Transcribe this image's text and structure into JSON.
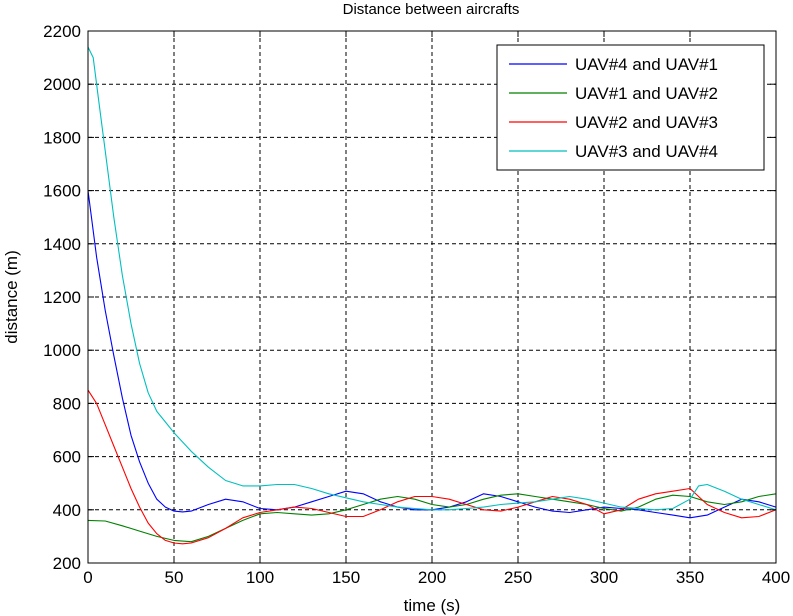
{
  "chart_data": {
    "type": "line",
    "title": "Distance between aircrafts",
    "xlabel": "time (s)",
    "ylabel": "distance (m)",
    "xlim": [
      0,
      400
    ],
    "ylim": [
      200,
      2200
    ],
    "xticks": [
      0,
      50,
      100,
      150,
      200,
      250,
      300,
      350,
      400
    ],
    "yticks": [
      200,
      400,
      600,
      800,
      1000,
      1200,
      1400,
      1600,
      1800,
      2000,
      2200
    ],
    "grid": true,
    "legend_position": "top-right",
    "series": [
      {
        "name": "UAV#4 and UAV#1",
        "color": "#0000ff",
        "x": [
          0,
          5,
          10,
          15,
          20,
          25,
          30,
          35,
          40,
          45,
          50,
          55,
          60,
          70,
          80,
          90,
          100,
          110,
          120,
          130,
          140,
          150,
          160,
          170,
          180,
          190,
          200,
          210,
          220,
          230,
          240,
          250,
          260,
          270,
          280,
          290,
          300,
          310,
          320,
          330,
          340,
          350,
          360,
          370,
          380,
          390,
          400
        ],
        "y": [
          1600,
          1350,
          1150,
          980,
          820,
          680,
          580,
          500,
          440,
          410,
          395,
          392,
          395,
          420,
          440,
          430,
          405,
          400,
          410,
          430,
          450,
          470,
          460,
          430,
          410,
          400,
          400,
          410,
          430,
          460,
          450,
          430,
          410,
          395,
          390,
          400,
          410,
          405,
          400,
          390,
          380,
          370,
          380,
          410,
          440,
          430,
          410
        ]
      },
      {
        "name": "UAV#1 and UAV#2",
        "color": "#008000",
        "x": [
          0,
          10,
          20,
          30,
          40,
          50,
          60,
          70,
          80,
          90,
          100,
          110,
          120,
          130,
          140,
          150,
          160,
          170,
          180,
          190,
          200,
          210,
          220,
          230,
          240,
          250,
          260,
          270,
          280,
          290,
          300,
          310,
          320,
          330,
          340,
          350,
          360,
          370,
          380,
          390,
          400
        ],
        "y": [
          360,
          358,
          340,
          320,
          300,
          285,
          280,
          300,
          330,
          360,
          385,
          390,
          385,
          380,
          385,
          400,
          420,
          440,
          450,
          440,
          420,
          410,
          420,
          440,
          455,
          460,
          450,
          440,
          430,
          420,
          405,
          395,
          410,
          440,
          455,
          450,
          430,
          420,
          430,
          450,
          460
        ]
      },
      {
        "name": "UAV#2 and UAV#3",
        "color": "#ff0000",
        "x": [
          0,
          5,
          10,
          15,
          20,
          25,
          30,
          35,
          40,
          45,
          50,
          55,
          60,
          70,
          80,
          90,
          100,
          110,
          120,
          130,
          140,
          150,
          160,
          170,
          180,
          190,
          200,
          210,
          220,
          230,
          240,
          250,
          260,
          270,
          280,
          290,
          300,
          310,
          320,
          330,
          340,
          350,
          360,
          370,
          380,
          390,
          400
        ],
        "y": [
          850,
          800,
          720,
          640,
          560,
          480,
          410,
          350,
          310,
          285,
          275,
          272,
          275,
          295,
          330,
          370,
          390,
          400,
          410,
          405,
          390,
          375,
          375,
          400,
          430,
          450,
          450,
          440,
          420,
          400,
          395,
          410,
          430,
          450,
          440,
          420,
          385,
          400,
          440,
          460,
          470,
          480,
          420,
          390,
          370,
          375,
          400
        ]
      },
      {
        "name": "UAV#3 and UAV#4",
        "color": "#00bfbf",
        "x": [
          0,
          3,
          6,
          10,
          15,
          20,
          25,
          30,
          35,
          40,
          45,
          50,
          60,
          70,
          80,
          90,
          100,
          110,
          120,
          130,
          140,
          150,
          160,
          170,
          180,
          190,
          200,
          210,
          220,
          230,
          240,
          250,
          260,
          270,
          280,
          290,
          300,
          310,
          320,
          330,
          340,
          350,
          355,
          360,
          370,
          380,
          390,
          400
        ],
        "y": [
          2140,
          2100,
          1950,
          1750,
          1500,
          1280,
          1100,
          950,
          840,
          770,
          730,
          690,
          620,
          560,
          510,
          490,
          490,
          495,
          495,
          480,
          460,
          445,
          430,
          420,
          410,
          405,
          400,
          400,
          405,
          410,
          420,
          425,
          430,
          440,
          450,
          440,
          425,
          410,
          405,
          400,
          405,
          440,
          490,
          495,
          470,
          440,
          420,
          400
        ]
      }
    ]
  }
}
